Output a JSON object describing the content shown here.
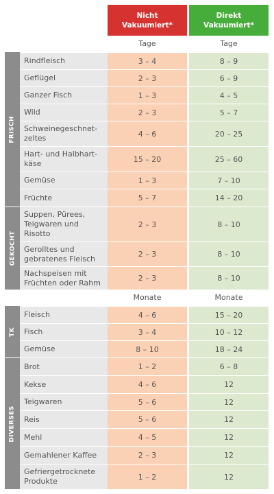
{
  "header": {
    "col_not_vacuum": "Nicht\nVakuumiert*",
    "col_vacuum": "Direkt\nVakuumiert*"
  },
  "sections": [
    {
      "label": "FRISCH",
      "unit_red": "Tage",
      "unit_green": "Tage",
      "rows": [
        {
          "name": "Rindfleisch",
          "not": "3 – 4",
          "vac": "8 – 9"
        },
        {
          "name": "Geflügel",
          "not": "2 – 3",
          "vac": "6 – 9"
        },
        {
          "name": "Ganzer Fisch",
          "not": "1 – 3",
          "vac": "4 – 5"
        },
        {
          "name": "Wild",
          "not": "2 – 3",
          "vac": "5 – 7"
        },
        {
          "name": "Schweinegeschnet-\nzeltes",
          "not": "4 – 6",
          "vac": "20 – 25"
        },
        {
          "name": "Hart- und Halbhart-\nkäse",
          "not": "15 – 20",
          "vac": "25 – 60"
        },
        {
          "name": "Gemüse",
          "not": "1 – 3",
          "vac": "7 – 10"
        },
        {
          "name": "Früchte",
          "not": "5 – 7",
          "vac": "14 – 20"
        }
      ]
    },
    {
      "label": "GEKOCHT",
      "rows": [
        {
          "name": "Suppen, Pürees,\nTeigwaren und\nRisotto",
          "not": "2 – 3",
          "vac": "8 – 10"
        },
        {
          "name": "Gerolltes und\ngebratenes Fleisch",
          "not": "2 – 3",
          "vac": "8 – 10"
        },
        {
          "name": "Nachspeisen mit\nFrüchten oder Rahm",
          "not": "2 – 3",
          "vac": "8 – 10"
        }
      ]
    },
    {
      "label": "TK",
      "unit_red": "Monate",
      "unit_green": "Monate",
      "rows": [
        {
          "name": "Fleisch",
          "not": "4 – 6",
          "vac": "15 – 20"
        },
        {
          "name": "Fisch",
          "not": "3 – 4",
          "vac": "10 – 12"
        },
        {
          "name": "Gemüse",
          "not": "8 – 10",
          "vac": "18 – 24"
        }
      ]
    },
    {
      "label": "DIVERSES",
      "rows": [
        {
          "name": "Brot",
          "not": "1 – 2",
          "vac": "6 – 8"
        },
        {
          "name": "Kekse",
          "not": "4 – 6",
          "vac": "12"
        },
        {
          "name": "Teigwaren",
          "not": "5 – 6",
          "vac": "12"
        },
        {
          "name": "Reis",
          "not": "5 – 6",
          "vac": "12"
        },
        {
          "name": "Mehl",
          "not": "4 – 5",
          "vac": "12"
        },
        {
          "name": "Gemahlener Kaffee",
          "not": "2 – 3",
          "vac": "12"
        },
        {
          "name": "Gefriergetrocknete\nProdukte",
          "not": "1 – 2",
          "vac": "12"
        }
      ]
    }
  ],
  "colors": {
    "header_red": "#d6322f",
    "header_green": "#46ad3a",
    "cell_red": "#fbd1b6",
    "cell_green": "#dde9cf",
    "section_label": "#8c8c8c"
  }
}
